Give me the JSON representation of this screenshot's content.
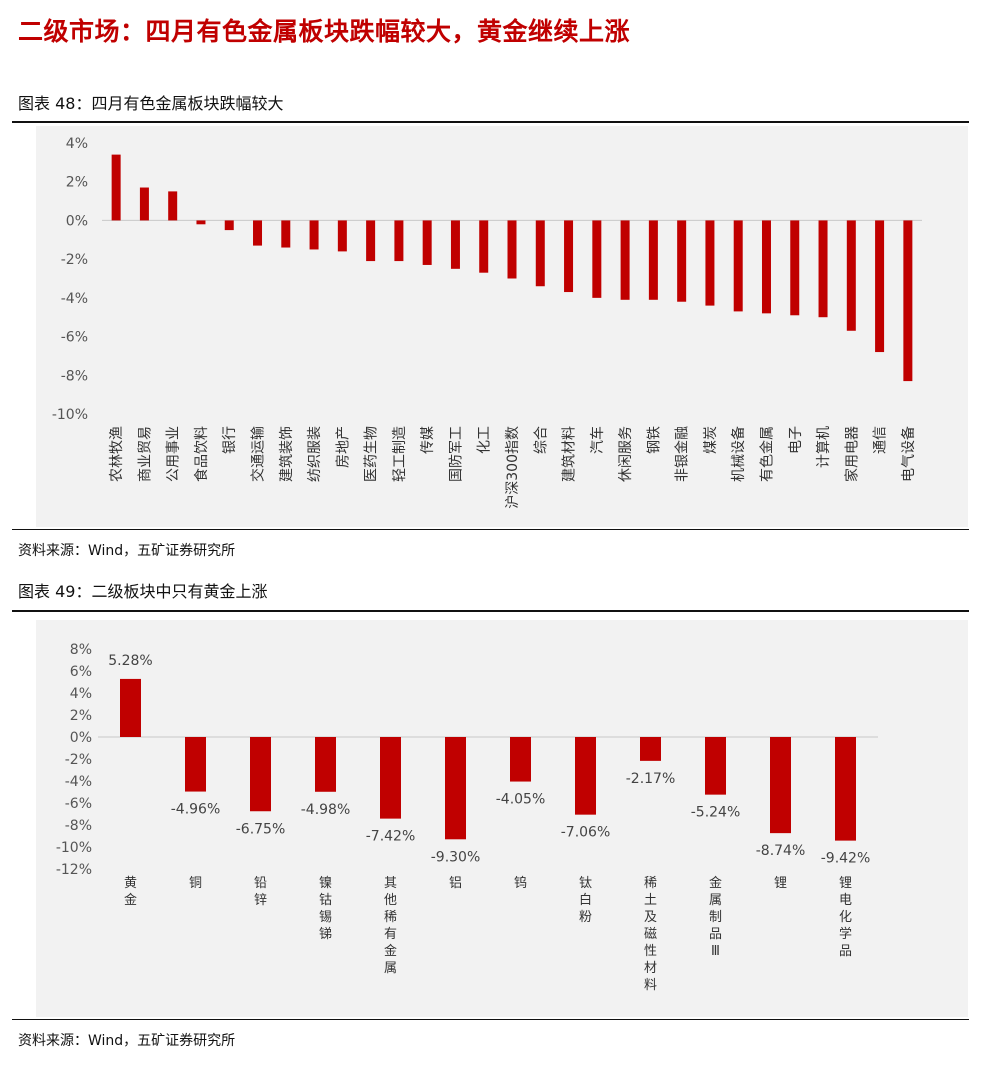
{
  "heading": "二级市场：四月有色金属板块跌幅较大，黄金继续上涨",
  "figure48": {
    "title": "图表 48：四月有色金属板块跌幅较大",
    "source": "资料来源：Wind，五矿证券研究所"
  },
  "figure49": {
    "title": "图表 49：二级板块中只有黄金上涨",
    "source": "资料来源：Wind，五矿证券研究所"
  },
  "colors": {
    "bar": "#c00000",
    "heading": "#c00000",
    "panel_bg": "#f2f2f2"
  },
  "chart_data": [
    {
      "type": "bar",
      "title": "",
      "xlabel": "",
      "ylabel": "",
      "ylim": [
        -10,
        4
      ],
      "yticks": [
        "4%",
        "2%",
        "0%",
        "-2%",
        "-4%",
        "-6%",
        "-8%",
        "-10%"
      ],
      "grid": false,
      "legend": "none",
      "categories": [
        "农林牧渔",
        "商业贸易",
        "公用事业",
        "食品饮料",
        "银行",
        "交通运输",
        "建筑装饰",
        "纺织服装",
        "房地产",
        "医药生物",
        "轻工制造",
        "传媒",
        "国防军工",
        "化工",
        "沪深300指数",
        "综合",
        "建筑材料",
        "汽车",
        "休闲服务",
        "钢铁",
        "非银金融",
        "煤炭",
        "机械设备",
        "有色金属",
        "电子",
        "计算机",
        "家用电器",
        "通信",
        "电气设备"
      ],
      "values": [
        3.4,
        1.7,
        1.5,
        -0.2,
        -0.5,
        -1.3,
        -1.4,
        -1.5,
        -1.6,
        -2.1,
        -2.1,
        -2.3,
        -2.5,
        -2.7,
        -3.0,
        -3.4,
        -3.7,
        -4.0,
        -4.1,
        -4.1,
        -4.2,
        -4.4,
        -4.7,
        -4.8,
        -4.9,
        -5.0,
        -5.7,
        -6.8,
        -8.3
      ]
    },
    {
      "type": "bar",
      "title": "",
      "xlabel": "",
      "ylabel": "",
      "ylim": [
        -12,
        8
      ],
      "yticks": [
        "8%",
        "6%",
        "4%",
        "2%",
        "0%",
        "-2%",
        "-4%",
        "-6%",
        "-8%",
        "-10%",
        "-12%"
      ],
      "grid": false,
      "legend": "none",
      "categories": [
        "黄金",
        "铜",
        "铅锌",
        "镍钴锡锑",
        "其他稀有金属",
        "铝",
        "钨",
        "钛白粉",
        "稀土及磁性材料",
        "金属制品Ⅲ",
        "锂",
        "锂电化学品"
      ],
      "values": [
        5.28,
        -4.96,
        -6.75,
        -4.98,
        -7.42,
        -9.3,
        -4.05,
        -7.06,
        -2.17,
        -5.24,
        -8.74,
        -9.42
      ],
      "data_labels": [
        "5.28%",
        "-4.96%",
        "-6.75%",
        "-4.98%",
        "-7.42%",
        "-9.30%",
        "-4.05%",
        "-7.06%",
        "-2.17%",
        "-5.24%",
        "-8.74%",
        "-9.42%"
      ]
    }
  ]
}
